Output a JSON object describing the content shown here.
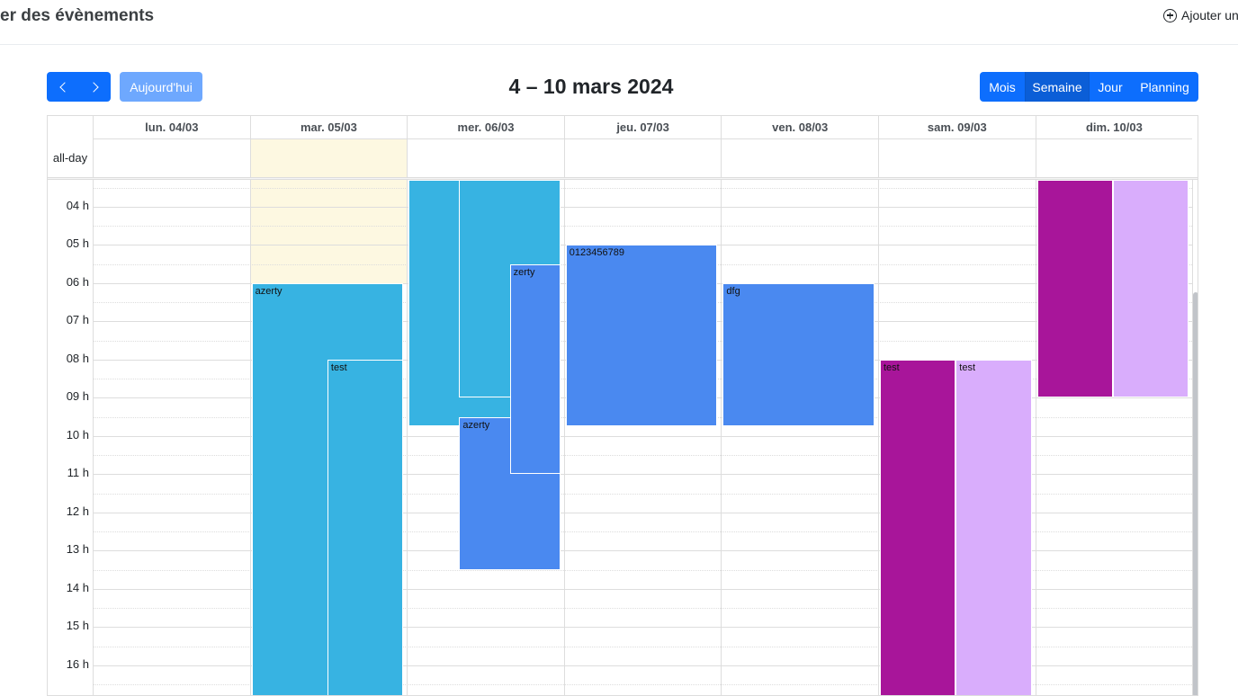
{
  "header": {
    "title": "er des évènements",
    "add_label": "Ajouter un",
    "add_icon": "plus-circle-icon"
  },
  "toolbar": {
    "prev_icon": "chevron-left-icon",
    "next_icon": "chevron-right-icon",
    "today_label": "Aujourd'hui",
    "title": "4 – 10 mars 2024",
    "views": [
      {
        "label": "Mois",
        "active": false
      },
      {
        "label": "Semaine",
        "active": true
      },
      {
        "label": "Jour",
        "active": false
      },
      {
        "label": "Planning",
        "active": false
      }
    ]
  },
  "calendar": {
    "allday_label": "all-day",
    "days": [
      "lun. 04/03",
      "mar. 05/03",
      "mer. 06/03",
      "jeu. 07/03",
      "ven. 08/03",
      "sam. 09/03",
      "dim. 10/03"
    ],
    "today_index": 1,
    "hours": [
      "04 h",
      "05 h",
      "06 h",
      "07 h",
      "08 h",
      "09 h",
      "10 h",
      "11 h",
      "12 h",
      "13 h",
      "14 h",
      "15 h",
      "16 h"
    ],
    "events": [
      {
        "day": 1,
        "title": "azerty",
        "color": "#37b3e2",
        "lane_start": 0,
        "lane_end": 1,
        "start_hour": 6,
        "end_hour": 18
      },
      {
        "day": 1,
        "title": "test",
        "color": "#37b3e2",
        "lane_start": 0.5,
        "lane_end": 1,
        "start_hour": 8,
        "end_hour": 18
      },
      {
        "day": 2,
        "title": "",
        "color": "#37b3e2",
        "lane_start": 0,
        "lane_end": 1,
        "start_hour": 2,
        "end_hour": 9.75
      },
      {
        "day": 2,
        "title": "",
        "color": "#37b3e2",
        "lane_start": 0.333,
        "lane_end": 1,
        "start_hour": 2,
        "end_hour": 9
      },
      {
        "day": 2,
        "title": "azerty",
        "color": "#4a89f0",
        "lane_start": 0.333,
        "lane_end": 1,
        "start_hour": 9.5,
        "end_hour": 13.5
      },
      {
        "day": 2,
        "title": "zerty",
        "color": "#4a89f0",
        "lane_start": 0.667,
        "lane_end": 1,
        "start_hour": 5.5,
        "end_hour": 11
      },
      {
        "day": 3,
        "title": "0123456789",
        "color": "#4a89f0",
        "lane_start": 0,
        "lane_end": 1,
        "start_hour": 5,
        "end_hour": 9.75
      },
      {
        "day": 4,
        "title": "dfg",
        "color": "#4a89f0",
        "lane_start": 0,
        "lane_end": 1,
        "start_hour": 6,
        "end_hour": 9.75
      },
      {
        "day": 5,
        "title": "test",
        "color": "#a8159a",
        "lane_start": 0,
        "lane_end": 0.5,
        "start_hour": 8,
        "end_hour": 18
      },
      {
        "day": 5,
        "title": "test",
        "color": "#d9adfc",
        "lane_start": 0.5,
        "lane_end": 1,
        "start_hour": 8,
        "end_hour": 18
      },
      {
        "day": 6,
        "title": "",
        "color": "#a8159a",
        "lane_start": 0,
        "lane_end": 0.5,
        "start_hour": 2,
        "end_hour": 9
      },
      {
        "day": 6,
        "title": "",
        "color": "#d9adfc",
        "lane_start": 0.5,
        "lane_end": 1,
        "start_hour": 2,
        "end_hour": 9
      }
    ]
  },
  "colors": {
    "primary": "#0d6efd",
    "primary_active": "#0b5ed7",
    "today_disabled": "#6ea8fe",
    "today_highlight": "#fdf8e1"
  }
}
